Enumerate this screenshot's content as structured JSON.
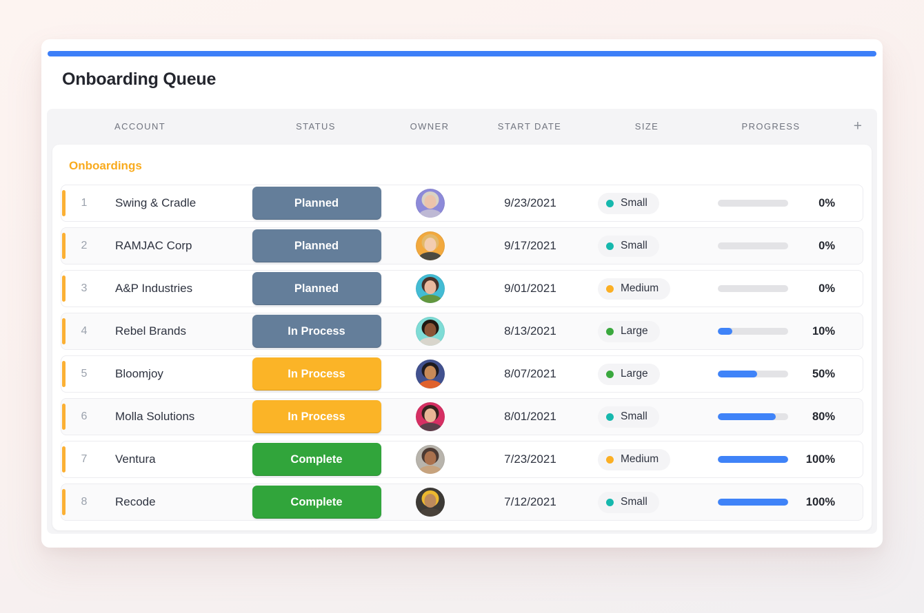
{
  "page": {
    "title": "Onboarding Queue"
  },
  "accent": {
    "top_bar_color": "#3d7ff8",
    "row_accent_color": "#fbb034",
    "progress_fill_color": "#3f83f8"
  },
  "table": {
    "columns": [
      "ACCOUNT",
      "STATUS",
      "OWNER",
      "START DATE",
      "SIZE",
      "PROGRESS"
    ],
    "add_column_label": "+",
    "group": {
      "label": "Onboardings",
      "color": "#f9ab1e"
    },
    "rows": [
      {
        "num": "1",
        "account": "Swing & Cradle",
        "status": {
          "label": "Planned",
          "color": "#647e9a"
        },
        "owner": {
          "icon": "avatar",
          "bg": "#8d8ad9",
          "skin": "#ecc3ab",
          "hair": "#d9d2c4",
          "shirt": "#beb9d4"
        },
        "start_date": "9/23/2021",
        "size": {
          "label": "Small",
          "dot_color": "#16b8ad"
        },
        "progress": {
          "percent": 0,
          "label": "0%"
        }
      },
      {
        "num": "2",
        "account": "RAMJAC Corp",
        "status": {
          "label": "Planned",
          "color": "#647e9a"
        },
        "owner": {
          "icon": "avatar",
          "bg": "#f2a93e",
          "skin": "#f3cdb0",
          "hair": "#e3b96a",
          "shirt": "#4c4a40"
        },
        "start_date": "9/17/2021",
        "size": {
          "label": "Small",
          "dot_color": "#16b8ad"
        },
        "progress": {
          "percent": 0,
          "label": "0%"
        }
      },
      {
        "num": "3",
        "account": "A&P Industries",
        "status": {
          "label": "Planned",
          "color": "#647e9a"
        },
        "owner": {
          "icon": "avatar",
          "bg": "#43bcd4",
          "skin": "#eab99e",
          "hair": "#4a332a",
          "shirt": "#63973f"
        },
        "start_date": "9/01/2021",
        "size": {
          "label": "Medium",
          "dot_color": "#fbaf24"
        },
        "progress": {
          "percent": 0,
          "label": "0%"
        }
      },
      {
        "num": "4",
        "account": "Rebel Brands",
        "status": {
          "label": "In Process",
          "color": "#647e9a"
        },
        "owner": {
          "icon": "avatar",
          "bg": "#7edcd6",
          "skin": "#8a5436",
          "hair": "#201812",
          "shirt": "#d8d5cc"
        },
        "start_date": "8/13/2021",
        "size": {
          "label": "Large",
          "dot_color": "#3aa83e"
        },
        "progress": {
          "percent": 10,
          "label": "10%"
        }
      },
      {
        "num": "5",
        "account": "Bloomjoy",
        "status": {
          "label": "In Process",
          "color": "#fbb427"
        },
        "owner": {
          "icon": "avatar",
          "bg": "#41518f",
          "skin": "#c78a58",
          "hair": "#1d1a1f",
          "shirt": "#e0622c"
        },
        "start_date": "8/07/2021",
        "size": {
          "label": "Large",
          "dot_color": "#3aa83e"
        },
        "progress": {
          "percent": 50,
          "label": "50%"
        }
      },
      {
        "num": "6",
        "account": "Molla Solutions",
        "status": {
          "label": "In Process",
          "color": "#fbb427"
        },
        "owner": {
          "icon": "avatar",
          "bg": "#d62f63",
          "skin": "#e9b596",
          "hair": "#35231f",
          "shirt": "#5a3f4a"
        },
        "start_date": "8/01/2021",
        "size": {
          "label": "Small",
          "dot_color": "#16b8ad"
        },
        "progress": {
          "percent": 80,
          "label": "80%"
        }
      },
      {
        "num": "7",
        "account": "Ventura",
        "status": {
          "label": "Complete",
          "color": "#31a53b"
        },
        "owner": {
          "icon": "avatar",
          "bg": "#b8b4ac",
          "skin": "#aa714d",
          "hair": "#4b3a33",
          "shirt": "#c7a37e"
        },
        "start_date": "7/23/2021",
        "size": {
          "label": "Medium",
          "dot_color": "#fbaf24"
        },
        "progress": {
          "percent": 100,
          "label": "100%"
        }
      },
      {
        "num": "8",
        "account": "Recode",
        "status": {
          "label": "Complete",
          "color": "#31a53b"
        },
        "owner": {
          "icon": "avatar",
          "bg": "#3d3a36",
          "skin": "#bd8a5d",
          "hair": "#ecb82f",
          "shirt": "#4a423a"
        },
        "start_date": "7/12/2021",
        "size": {
          "label": "Small",
          "dot_color": "#16b8ad"
        },
        "progress": {
          "percent": 100,
          "label": "100%"
        }
      }
    ]
  }
}
